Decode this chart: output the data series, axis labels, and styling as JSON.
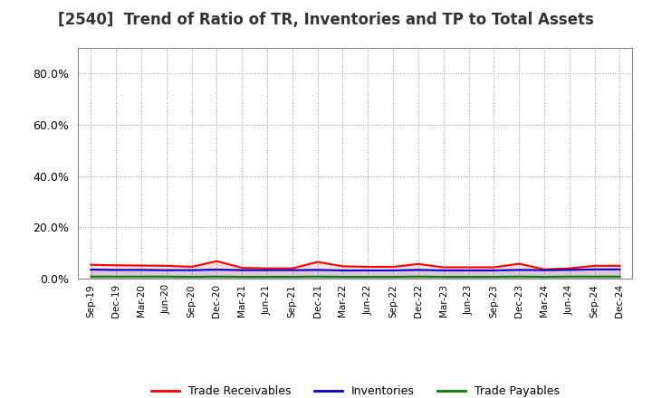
{
  "title": "[2540]  Trend of Ratio of TR, Inventories and TP to Total Assets",
  "x_labels": [
    "Sep-19",
    "Dec-19",
    "Mar-20",
    "Jun-20",
    "Sep-20",
    "Dec-20",
    "Mar-21",
    "Jun-21",
    "Sep-21",
    "Dec-21",
    "Mar-22",
    "Jun-22",
    "Sep-22",
    "Dec-22",
    "Mar-23",
    "Jun-23",
    "Sep-23",
    "Dec-23",
    "Mar-24",
    "Jun-24",
    "Sep-24",
    "Dec-24"
  ],
  "trade_receivables": [
    0.054,
    0.052,
    0.051,
    0.05,
    0.046,
    0.068,
    0.042,
    0.04,
    0.04,
    0.065,
    0.048,
    0.046,
    0.046,
    0.057,
    0.044,
    0.044,
    0.044,
    0.058,
    0.036,
    0.04,
    0.05,
    0.05
  ],
  "inventories": [
    0.035,
    0.034,
    0.034,
    0.033,
    0.033,
    0.035,
    0.033,
    0.033,
    0.033,
    0.034,
    0.032,
    0.032,
    0.032,
    0.034,
    0.032,
    0.032,
    0.032,
    0.034,
    0.033,
    0.034,
    0.036,
    0.036
  ],
  "trade_payables": [
    0.008,
    0.008,
    0.008,
    0.008,
    0.007,
    0.008,
    0.007,
    0.007,
    0.007,
    0.008,
    0.007,
    0.007,
    0.007,
    0.008,
    0.007,
    0.007,
    0.007,
    0.008,
    0.007,
    0.008,
    0.008,
    0.008
  ],
  "tr_color": "#ff0000",
  "inv_color": "#0000cd",
  "tp_color": "#008000",
  "ylim": [
    0.0,
    0.9
  ],
  "yticks": [
    0.0,
    0.2,
    0.4,
    0.6,
    0.8
  ],
  "bg_color": "#ffffff",
  "plot_bg_color": "#ffffff",
  "grid_color": "#999999",
  "title_fontsize": 12,
  "legend_labels": [
    "Trade Receivables",
    "Inventories",
    "Trade Payables"
  ],
  "figsize": [
    7.2,
    4.4
  ],
  "dpi": 100
}
